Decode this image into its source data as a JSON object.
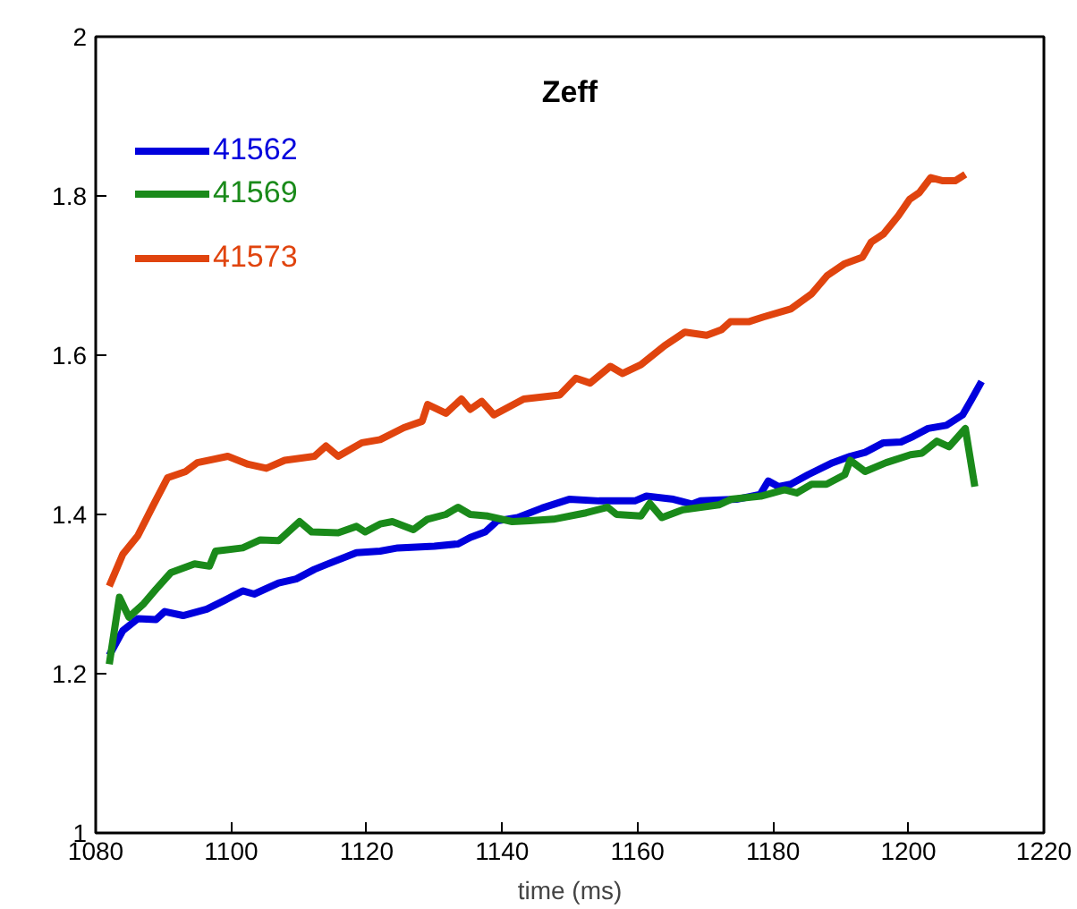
{
  "chart_data": {
    "type": "line",
    "title": "Zeff",
    "xlabel": "time (ms)",
    "xlim": [
      1080,
      1220
    ],
    "ylim": [
      1,
      2
    ],
    "xticks": [
      1080,
      1100,
      1120,
      1140,
      1160,
      1180,
      1200,
      1220
    ],
    "yticks": [
      1,
      1.2,
      1.4,
      1.6,
      1.8,
      2
    ],
    "grid": false,
    "legend": "top left",
    "line_style": "solid",
    "marker": "none",
    "series": [
      {
        "name": "41562",
        "color": "#0000dd",
        "x": [
          1082,
          1084,
          1086.2,
          1088.9,
          1090.2,
          1092.9,
          1096.4,
          1099,
          1101.7,
          1103.4,
          1107,
          1109.6,
          1112.3,
          1114,
          1118.5,
          1122,
          1124.6,
          1130,
          1133.5,
          1135.3,
          1137.5,
          1139.3,
          1142.3,
          1145.9,
          1149.9,
          1154.3,
          1159.6,
          1161.3,
          1165.3,
          1168,
          1169.3,
          1174.6,
          1178.1,
          1179.3,
          1180.8,
          1182.6,
          1185.2,
          1188.8,
          1191.4,
          1193.6,
          1196.3,
          1198.9,
          1200.7,
          1202.9,
          1205.6,
          1208,
          1209.3,
          1210.8
        ],
        "values": [
          1.223,
          1.254,
          1.269,
          1.268,
          1.278,
          1.273,
          1.281,
          1.292,
          1.304,
          1.3,
          1.314,
          1.319,
          1.331,
          1.337,
          1.352,
          1.354,
          1.358,
          1.36,
          1.363,
          1.371,
          1.378,
          1.392,
          1.396,
          1.408,
          1.419,
          1.417,
          1.417,
          1.423,
          1.419,
          1.413,
          1.417,
          1.419,
          1.425,
          1.442,
          1.435,
          1.438,
          1.45,
          1.465,
          1.473,
          1.478,
          1.49,
          1.491,
          1.498,
          1.508,
          1.512,
          1.525,
          1.544,
          1.567
        ]
      },
      {
        "name": "41569",
        "color": "#1a8a1a",
        "x": [
          1082,
          1083.5,
          1084.9,
          1087.1,
          1088.9,
          1091.1,
          1094.6,
          1096.8,
          1097.7,
          1101.7,
          1104.3,
          1107,
          1110.1,
          1111.9,
          1115.8,
          1118.5,
          1119.8,
          1122,
          1123.8,
          1126.9,
          1129,
          1131.7,
          1133.5,
          1135.3,
          1137.9,
          1141.5,
          1144.1,
          1147.6,
          1151.2,
          1152.4,
          1155.6,
          1156.9,
          1160.5,
          1161.8,
          1163.6,
          1166.7,
          1172,
          1173.8,
          1178.2,
          1181.7,
          1183.5,
          1185.7,
          1187.9,
          1190.6,
          1191.4,
          1193.6,
          1196.7,
          1200.3,
          1202,
          1204.2,
          1206,
          1208.4,
          1209.8
        ],
        "values": [
          1.212,
          1.296,
          1.271,
          1.288,
          1.306,
          1.327,
          1.338,
          1.335,
          1.354,
          1.358,
          1.368,
          1.367,
          1.391,
          1.378,
          1.377,
          1.385,
          1.378,
          1.388,
          1.391,
          1.381,
          1.394,
          1.4,
          1.409,
          1.4,
          1.398,
          1.391,
          1.392,
          1.394,
          1.4,
          1.402,
          1.409,
          1.4,
          1.398,
          1.414,
          1.396,
          1.406,
          1.412,
          1.419,
          1.423,
          1.431,
          1.427,
          1.438,
          1.438,
          1.45,
          1.468,
          1.454,
          1.465,
          1.475,
          1.477,
          1.492,
          1.485,
          1.508,
          1.435
        ]
      },
      {
        "name": "41573",
        "color": "#e0440e",
        "x": [
          1082,
          1084,
          1086.2,
          1088.4,
          1090.6,
          1093.3,
          1095,
          1099.5,
          1102.5,
          1105.2,
          1107.9,
          1112.3,
          1114,
          1115.8,
          1119.3,
          1122,
          1125.5,
          1128.2,
          1129,
          1131.7,
          1134,
          1135.3,
          1137,
          1138.8,
          1143.2,
          1148.5,
          1150.9,
          1153,
          1156,
          1157.8,
          1160.5,
          1164,
          1167,
          1170.2,
          1172.4,
          1173.7,
          1176.4,
          1178.6,
          1182.6,
          1185.7,
          1188,
          1190.6,
          1193.2,
          1194.5,
          1196.3,
          1198.5,
          1200.2,
          1201.6,
          1203.3,
          1205.1,
          1206.9,
          1208.4
        ],
        "values": [
          1.31,
          1.35,
          1.373,
          1.41,
          1.446,
          1.454,
          1.465,
          1.473,
          1.463,
          1.458,
          1.468,
          1.473,
          1.486,
          1.473,
          1.49,
          1.494,
          1.509,
          1.517,
          1.538,
          1.527,
          1.545,
          1.532,
          1.542,
          1.525,
          1.545,
          1.55,
          1.571,
          1.565,
          1.586,
          1.577,
          1.588,
          1.612,
          1.629,
          1.625,
          1.632,
          1.642,
          1.642,
          1.648,
          1.658,
          1.677,
          1.7,
          1.715,
          1.723,
          1.742,
          1.752,
          1.775,
          1.796,
          1.804,
          1.823,
          1.819,
          1.819,
          1.827
        ]
      }
    ]
  }
}
